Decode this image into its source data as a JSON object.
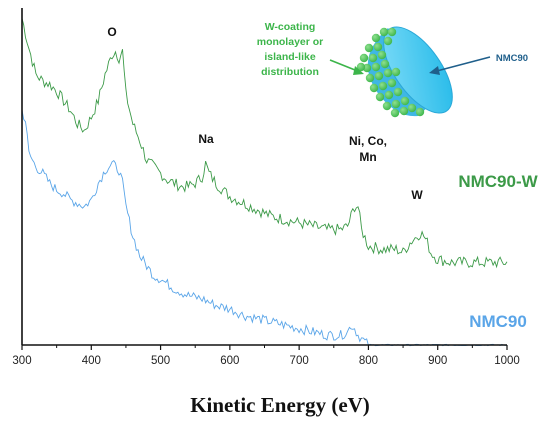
{
  "chart_data": {
    "type": "line",
    "xlabel": "Kinetic Energy (eV)",
    "ylabel": "",
    "xlim": [
      300,
      1000
    ],
    "ylim": [
      0,
      1
    ],
    "xticks": [
      300,
      400,
      500,
      600,
      700,
      800,
      900,
      1000
    ],
    "yticks_labeled": false,
    "grid": false,
    "series": [
      {
        "name": "NMC90-W",
        "color": "#3c9a48",
        "x": [
          300,
          310,
          320,
          330,
          340,
          350,
          360,
          370,
          380,
          390,
          400,
          410,
          420,
          430,
          435,
          440,
          445,
          450,
          460,
          470,
          480,
          490,
          500,
          510,
          520,
          530,
          540,
          550,
          560,
          565,
          570,
          580,
          590,
          600,
          620,
          640,
          660,
          680,
          700,
          720,
          740,
          760,
          770,
          775,
          780,
          785,
          790,
          800,
          820,
          840,
          850,
          860,
          870,
          875,
          880,
          885,
          890,
          900,
          920,
          950,
          1000
        ],
        "y": [
          0.99,
          0.9,
          0.82,
          0.8,
          0.79,
          0.77,
          0.74,
          0.71,
          0.67,
          0.65,
          0.69,
          0.74,
          0.82,
          0.88,
          0.89,
          0.87,
          0.89,
          0.76,
          0.67,
          0.62,
          0.56,
          0.54,
          0.52,
          0.5,
          0.49,
          0.48,
          0.48,
          0.49,
          0.51,
          0.55,
          0.52,
          0.49,
          0.47,
          0.45,
          0.43,
          0.41,
          0.39,
          0.38,
          0.37,
          0.36,
          0.35,
          0.35,
          0.36,
          0.39,
          0.42,
          0.42,
          0.35,
          0.3,
          0.29,
          0.29,
          0.28,
          0.31,
          0.33,
          0.34,
          0.33,
          0.31,
          0.28,
          0.26,
          0.25,
          0.25,
          0.25
        ]
      },
      {
        "name": "NMC90",
        "color": "#5aa5e8",
        "x": [
          300,
          305,
          310,
          320,
          330,
          340,
          350,
          360,
          370,
          380,
          390,
          400,
          410,
          420,
          430,
          435,
          440,
          445,
          450,
          460,
          470,
          480,
          490,
          500,
          520,
          540,
          560,
          580,
          600,
          620,
          640,
          660,
          680,
          700,
          720,
          740,
          760,
          770,
          775,
          780,
          785,
          790,
          800,
          850,
          900,
          950,
          1000
        ],
        "y": [
          0.71,
          0.68,
          0.58,
          0.54,
          0.52,
          0.49,
          0.47,
          0.46,
          0.44,
          0.43,
          0.42,
          0.44,
          0.49,
          0.53,
          0.55,
          0.54,
          0.53,
          0.49,
          0.42,
          0.33,
          0.27,
          0.24,
          0.21,
          0.2,
          0.17,
          0.15,
          0.14,
          0.12,
          0.11,
          0.09,
          0.08,
          0.07,
          0.06,
          0.05,
          0.04,
          0.03,
          0.03,
          0.04,
          0.06,
          0.05,
          0.03,
          0.02,
          0.0,
          0.0,
          0.0,
          0.0,
          0.0
        ]
      }
    ],
    "annotations": [
      {
        "text": "O",
        "x": 430
      },
      {
        "text": "Na",
        "x": 565
      },
      {
        "text": "Ni, Co,",
        "x": 782
      },
      {
        "text": "Mn",
        "x": 782
      },
      {
        "text": "W",
        "x": 872
      }
    ],
    "series_labels": [
      "NMC90-W",
      "NMC90"
    ]
  },
  "inset": {
    "left_label_lines": [
      "W-coating",
      "monolayer or",
      "island-like",
      "distribution"
    ],
    "right_label": "NMC90",
    "green": "#3cb54a",
    "cyan": "#1fb8e8",
    "navy": "#1f5f8b"
  }
}
